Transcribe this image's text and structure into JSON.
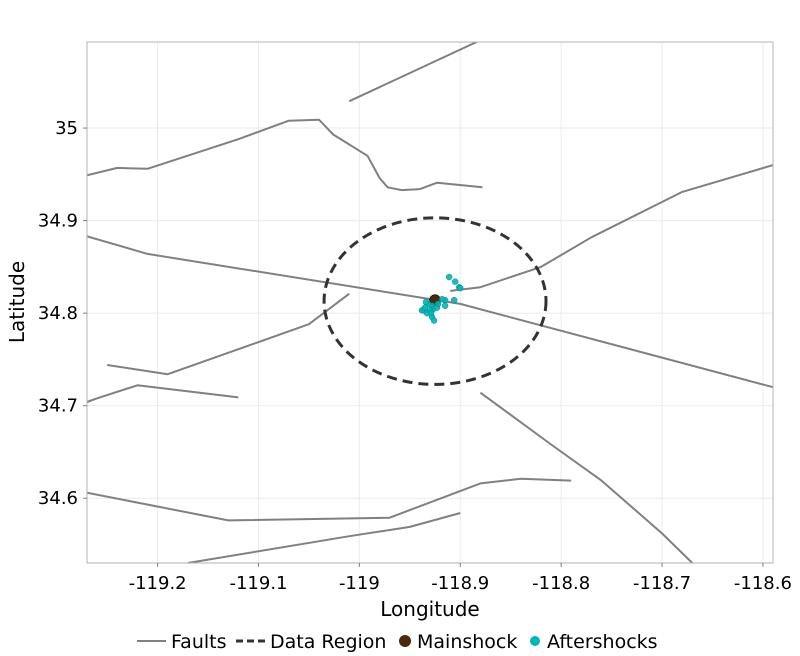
{
  "chart_data": {
    "type": "scatter",
    "title": "",
    "xlabel": "Longitude",
    "ylabel": "Latitude",
    "xlim": [
      -119.27,
      -118.59
    ],
    "ylim": [
      34.53,
      35.093
    ],
    "x_ticks": [
      -119.2,
      -119.1,
      -119.0,
      -118.9,
      -118.8,
      -118.7,
      -118.6
    ],
    "x_tick_labels": [
      "-119.2",
      "-119.1",
      "-119",
      "-118.9",
      "-118.8",
      "-118.7",
      "-118.6"
    ],
    "y_ticks": [
      34.6,
      34.7,
      34.8,
      34.9,
      35.0
    ],
    "y_tick_labels": [
      "34.6",
      "34.7",
      "34.8",
      "34.9",
      "35"
    ],
    "grid": true,
    "legend_position": "bottom",
    "legend": [
      {
        "label": "Faults",
        "kind": "solid-line",
        "color": "#808080"
      },
      {
        "label": "Data Region",
        "kind": "dashed-line",
        "color": "#333333"
      },
      {
        "label": "Mainshock",
        "kind": "point",
        "color": "#4a2a0a"
      },
      {
        "label": "Aftershocks",
        "kind": "point",
        "color": "#00b5b8"
      }
    ],
    "series": [
      {
        "name": "Faults",
        "type": "line",
        "color": "#808080",
        "lines": [
          [
            [
              -119.27,
              34.883
            ],
            [
              -119.21,
              34.864
            ],
            [
              -118.9,
              34.81
            ],
            [
              -118.59,
              34.72
            ]
          ],
          [
            [
              -119.27,
              34.949
            ],
            [
              -119.24,
              34.957
            ],
            [
              -119.21,
              34.956
            ],
            [
              -119.12,
              34.988
            ],
            [
              -119.07,
              35.008
            ],
            [
              -119.04,
              35.009
            ],
            [
              -119.026,
              34.993
            ],
            [
              -118.992,
              34.97
            ],
            [
              -118.98,
              34.946
            ],
            [
              -118.972,
              34.936
            ],
            [
              -118.958,
              34.933
            ],
            [
              -118.94,
              34.934
            ],
            [
              -118.923,
              34.941
            ],
            [
              -118.878,
              34.936
            ]
          ],
          [
            [
              -119.01,
              35.029
            ],
            [
              -118.87,
              35.1
            ]
          ],
          [
            [
              -118.91,
              34.824
            ],
            [
              -118.88,
              34.828
            ],
            [
              -118.82,
              34.85
            ],
            [
              -118.77,
              34.882
            ],
            [
              -118.68,
              34.931
            ],
            [
              -118.59,
              34.96
            ]
          ],
          [
            [
              -119.25,
              34.744
            ],
            [
              -119.19,
              34.734
            ],
            [
              -119.05,
              34.788
            ],
            [
              -119.01,
              34.821
            ]
          ],
          [
            [
              -119.27,
              34.704
            ],
            [
              -119.26,
              34.708
            ],
            [
              -119.22,
              34.722
            ],
            [
              -119.12,
              34.709
            ]
          ],
          [
            [
              -119.27,
              34.606
            ],
            [
              -119.13,
              34.576
            ],
            [
              -118.97,
              34.579
            ],
            [
              -118.88,
              34.616
            ],
            [
              -118.84,
              34.621
            ],
            [
              -118.79,
              34.619
            ]
          ],
          [
            [
              -119.17,
              34.53
            ],
            [
              -119.01,
              34.559
            ],
            [
              -118.95,
              34.569
            ],
            [
              -118.9,
              34.584
            ]
          ],
          [
            [
              -118.88,
              34.714
            ],
            [
              -118.81,
              34.658
            ],
            [
              -118.76,
              34.619
            ],
            [
              -118.7,
              34.562
            ],
            [
              -118.67,
              34.53
            ]
          ]
        ]
      },
      {
        "name": "Data Region",
        "type": "ellipse",
        "color": "#333333",
        "center": [
          -118.925,
          34.813
        ],
        "radius": [
          0.11,
          0.09
        ]
      },
      {
        "name": "Mainshock",
        "type": "scatter",
        "color": "#4a2a0a",
        "points": [
          [
            -118.925,
            34.814
          ]
        ]
      },
      {
        "name": "Aftershocks",
        "type": "scatter",
        "color": "#00b5b8",
        "points": [
          [
            -118.911,
            34.839
          ],
          [
            -118.905,
            34.834
          ],
          [
            -118.901,
            34.828
          ],
          [
            -118.9,
            34.827
          ],
          [
            -118.915,
            34.814
          ],
          [
            -118.918,
            34.815
          ],
          [
            -118.906,
            34.814
          ],
          [
            -118.915,
            34.808
          ],
          [
            -118.928,
            34.808
          ],
          [
            -118.932,
            34.81
          ],
          [
            -118.934,
            34.812
          ],
          [
            -118.936,
            34.803
          ],
          [
            -118.933,
            34.8
          ],
          [
            -118.938,
            34.803
          ],
          [
            -118.927,
            34.804
          ],
          [
            -118.923,
            34.806
          ],
          [
            -118.928,
            34.796
          ],
          [
            -118.926,
            34.792
          ],
          [
            -118.93,
            34.803
          ],
          [
            -118.935,
            34.806
          ],
          [
            -118.929,
            34.8
          ],
          [
            -118.922,
            34.81
          ]
        ]
      }
    ]
  }
}
